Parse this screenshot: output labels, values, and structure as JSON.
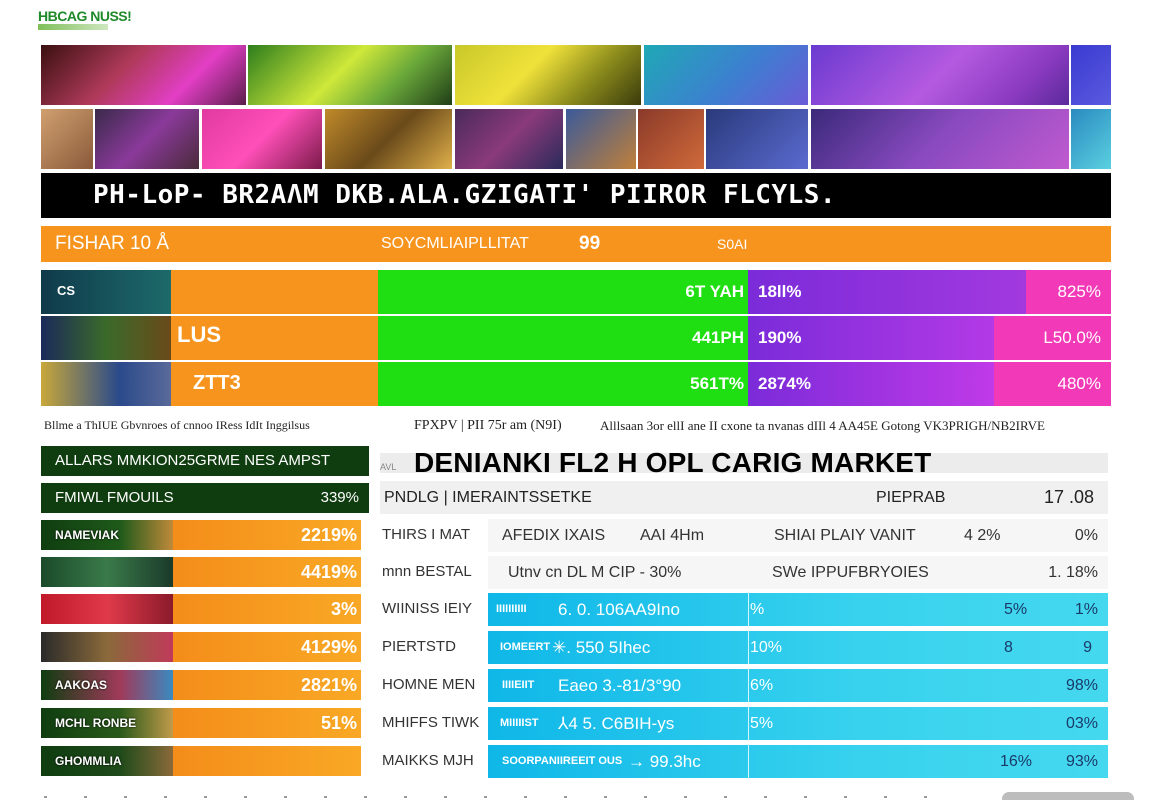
{
  "logo": {
    "text": "HBCAG NUSS!"
  },
  "colors": {
    "orange": "#f7941d",
    "green": "#1fdf12",
    "purple": "#8a2be2",
    "magenta": "#f23ab8",
    "dark_green": "#0f3d10",
    "cyan": "#1cc3ea",
    "black": "#000000"
  },
  "banner": {
    "title": "PH-LoP- BR2AΛM DKB.ALA.GZIGATI'  PIIROR FLCYLS."
  },
  "orange_header": {
    "left": "FISHAR 10 Å",
    "mid": "SOYCMLIAIPLLITAT",
    "num": "99",
    "right": "S0AI"
  },
  "summary_rows": [
    {
      "label": "CS",
      "green": "6T YAH",
      "purple": "18ll%",
      "magenta": "825%"
    },
    {
      "label": "LUS",
      "green": "441PH",
      "purple": "190%",
      "magenta": "L50.0%"
    },
    {
      "label": "ZTT3",
      "green": "561T%",
      "purple": "2874%",
      "magenta": "480%"
    }
  ],
  "notes": {
    "left": "Bllme a ThIUE Gbvnroes  of cnnoo IRess IdIt Inggilsus",
    "mid": "FPXPV | PII 75r am (N9I)",
    "right": "Alllsaan 3or ellI ane II cxone ta nvanas dIIl 4 AA45E Gotong VK3PRIGH/NB2IRVE"
  },
  "left_header": {
    "title": "ALLARS MMKION25GRME NES AMPST"
  },
  "left_subheader": {
    "title": "FMIWL FMOUILS",
    "pct": "339%"
  },
  "left_rows": [
    {
      "caption": "NAMEVIAK",
      "pct": "2219%"
    },
    {
      "caption": "",
      "pct": "4419%"
    },
    {
      "caption": "",
      "pct": "3%"
    },
    {
      "caption": "",
      "pct": "4129%"
    },
    {
      "caption": "AAKOAS",
      "pct": "2821%"
    },
    {
      "caption": "MCHL RONBE",
      "pct": "51%"
    },
    {
      "caption": "GHOMMLIA",
      "pct": ""
    }
  ],
  "market": {
    "tag": "AVL",
    "title": "DENIANKI  FL2 H OPL CARIG MARKET"
  },
  "market_header": {
    "left": "PNDLG | IMERAINTSSETKE",
    "mid": "PIEPRAB",
    "right": "17 .08"
  },
  "market_labels": [
    "THIRS I MAT",
    "mnn BESTAL",
    "WIINISS IEIY",
    "PIERTSTD",
    "HOMNE MEN",
    "MHIFFS TIWK",
    "MAIKKS MJH"
  ],
  "market_rows": [
    {
      "style": "plain",
      "a": "AFEDIX IXAIS",
      "b": "AAI 4Hm",
      "c": "SHIAI PLAIY VANIT",
      "d": "4 2%",
      "e": "0%"
    },
    {
      "style": "plain",
      "a": "Utnv cn DL M CIP - 30%",
      "b": "",
      "c": "SWe IPPUFBRYOIES",
      "d": "",
      "e": "1. 18%"
    },
    {
      "style": "cyan",
      "tag": "IIIIIIIIII",
      "a": "6. 0. 106AA9Ino",
      "b": "",
      "c": "%",
      "d": "5%",
      "e": "1%"
    },
    {
      "style": "cyan",
      "tag": "IOMEERT",
      "a": "✳. 550  5Ihec",
      "b": "",
      "c": "10%",
      "d": "8",
      "e": "9"
    },
    {
      "style": "cyan",
      "tag": "IIIIEIIT",
      "a": "Eaeo 3.-81/3°90",
      "b": "",
      "c": "6%",
      "d": "",
      "e": "98%"
    },
    {
      "style": "cyan",
      "tag": "MIIIIIST",
      "a": "⅄4 5. C6BIH-ys",
      "b": "",
      "c": "5%",
      "d": "",
      "e": "03%"
    },
    {
      "style": "cyan",
      "tag": "SOORPANIIREEIT OUS",
      "a": "→ 99.3hc",
      "b": "",
      "c": "",
      "d": "16%",
      "e": "93%"
    }
  ]
}
